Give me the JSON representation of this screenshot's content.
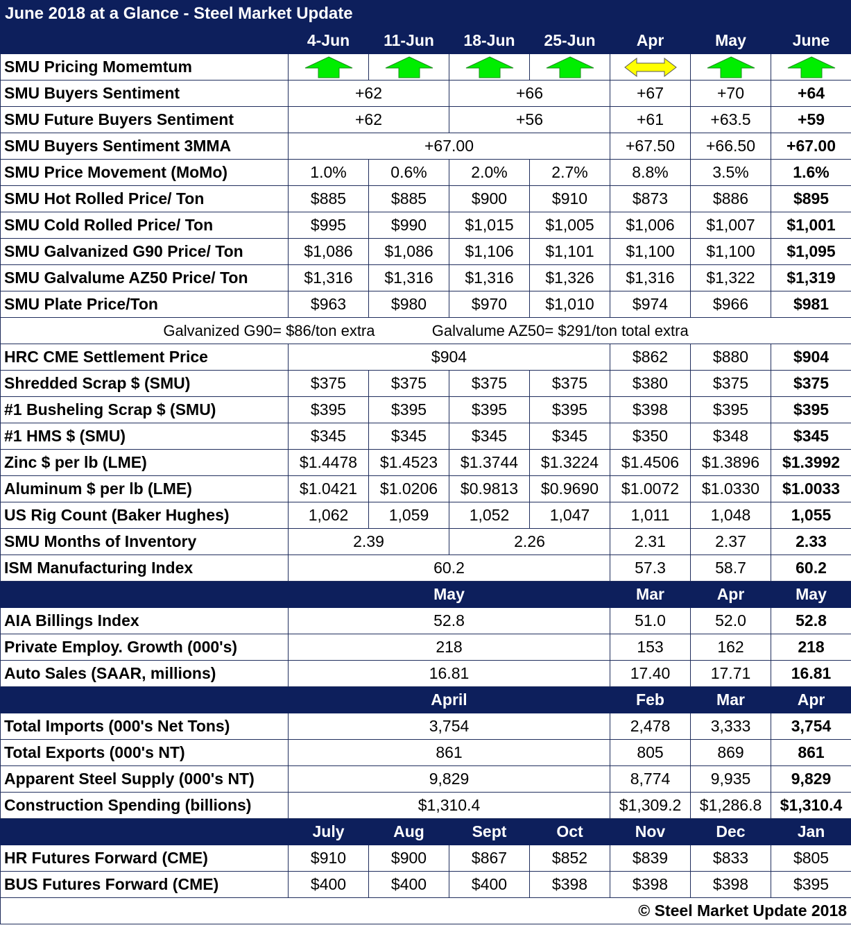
{
  "title": "June 2018 at a Glance - Steel Market Update",
  "header_weeks": [
    "4-Jun",
    "11-Jun",
    "18-Jun",
    "25-Jun",
    "Apr",
    "May",
    "June"
  ],
  "momentum": {
    "label": "SMU Pricing Momemtum",
    "arrows": [
      "up",
      "up",
      "up",
      "up",
      "sideways",
      "up",
      "up"
    ],
    "colors": {
      "up": "#00ee00",
      "sideways": "#ffff00"
    }
  },
  "buyers_sentiment": {
    "label": "SMU Buyers Sentiment",
    "a": "+62",
    "b": "+66",
    "apr": "+67",
    "may": "+70",
    "june": "+64"
  },
  "future_buyers": {
    "label": "SMU Future Buyers Sentiment",
    "a": "+62",
    "b": "+56",
    "apr": "+61",
    "may": "+63.5",
    "june": "+59"
  },
  "sentiment_3mma": {
    "label": "SMU Buyers Sentiment 3MMA",
    "a": "+67.00",
    "apr": "+67.50",
    "may": "+66.50",
    "june": "+67.00"
  },
  "weekly_rows": [
    {
      "label": "SMU Price Movement (MoMo)",
      "v": [
        "1.0%",
        "0.6%",
        "2.0%",
        "2.7%",
        "8.8%",
        "3.5%",
        "1.6%"
      ]
    },
    {
      "label": "SMU Hot Rolled Price/ Ton",
      "v": [
        "$885",
        "$885",
        "$900",
        "$910",
        "$873",
        "$886",
        "$895"
      ]
    },
    {
      "label": "SMU Cold Rolled Price/ Ton",
      "v": [
        "$995",
        "$990",
        "$1,015",
        "$1,005",
        "$1,006",
        "$1,007",
        "$1,001"
      ]
    },
    {
      "label": "SMU Galvanized G90 Price/ Ton",
      "v": [
        "$1,086",
        "$1,086",
        "$1,106",
        "$1,101",
        "$1,100",
        "$1,100",
        "$1,095"
      ]
    },
    {
      "label": "SMU Galvalume AZ50 Price/ Ton",
      "v": [
        "$1,316",
        "$1,316",
        "$1,316",
        "$1,326",
        "$1,316",
        "$1,322",
        "$1,319"
      ]
    },
    {
      "label": "SMU Plate Price/Ton",
      "v": [
        "$963",
        "$980",
        "$970",
        "$1,010",
        "$974",
        "$966",
        "$981"
      ]
    }
  ],
  "note": {
    "g90": "Galvanized G90= $86/ton extra",
    "az50": "Galvalume AZ50= $291/ton total extra"
  },
  "hrc_cme": {
    "label": "HRC CME Settlement Price",
    "a": "$904",
    "apr": "$862",
    "may": "$880",
    "june": "$904"
  },
  "scrap_rows": [
    {
      "label": "Shredded Scrap $ (SMU)",
      "v": [
        "$375",
        "$375",
        "$375",
        "$375",
        "$380",
        "$375",
        "$375"
      ]
    },
    {
      "label": "#1 Busheling Scrap $ (SMU)",
      "v": [
        "$395",
        "$395",
        "$395",
        "$395",
        "$398",
        "$395",
        "$395"
      ]
    },
    {
      "label": "#1 HMS $ (SMU)",
      "v": [
        "$345",
        "$345",
        "$345",
        "$345",
        "$350",
        "$348",
        "$345"
      ]
    },
    {
      "label": "Zinc $ per lb (LME)",
      "v": [
        "$1.4478",
        "$1.4523",
        "$1.3744",
        "$1.3224",
        "$1.4506",
        "$1.3896",
        "$1.3992"
      ]
    },
    {
      "label": "Aluminum $ per lb (LME)",
      "v": [
        "$1.0421",
        "$1.0206",
        "$0.9813",
        "$0.9690",
        "$1.0072",
        "$1.0330",
        "$1.0033"
      ]
    },
    {
      "label": "US Rig Count (Baker Hughes)",
      "v": [
        "1,062",
        "1,059",
        "1,052",
        "1,047",
        "1,011",
        "1,048",
        "1,055"
      ]
    }
  ],
  "inventory": {
    "label": "SMU Months of Inventory",
    "a": "2.39",
    "b": "2.26",
    "apr": "2.31",
    "may": "2.37",
    "june": "2.33"
  },
  "ism": {
    "label": "ISM Manufacturing Index",
    "a": "60.2",
    "apr": "57.3",
    "may": "58.7",
    "june": "60.2"
  },
  "section2": {
    "header": {
      "main": "May",
      "c1": "Mar",
      "c2": "Apr",
      "c3": "May"
    },
    "rows": [
      {
        "label": "AIA Billings Index",
        "main": "52.8",
        "c1": "51.0",
        "c2": "52.0",
        "c3": "52.8"
      },
      {
        "label": "Private Employ. Growth (000's)",
        "main": "218",
        "c1": "153",
        "c2": "162",
        "c3": "218"
      },
      {
        "label": "Auto Sales (SAAR, millions)",
        "main": "16.81",
        "c1": "17.40",
        "c2": "17.71",
        "c3": "16.81"
      }
    ]
  },
  "section3": {
    "header": {
      "main": "April",
      "c1": "Feb",
      "c2": "Mar",
      "c3": "Apr"
    },
    "rows": [
      {
        "label": "Total Imports (000's Net Tons)",
        "main": "3,754",
        "c1": "2,478",
        "c2": "3,333",
        "c3": "3,754"
      },
      {
        "label": "Total Exports (000's NT)",
        "main": "861",
        "c1": "805",
        "c2": "869",
        "c3": "861"
      },
      {
        "label": "Apparent Steel Supply (000's NT)",
        "main": "9,829",
        "c1": "8,774",
        "c2": "9,935",
        "c3": "9,829"
      },
      {
        "label": "Construction Spending (billions)",
        "main": "$1,310.4",
        "c1": "$1,309.2",
        "c2": "$1,286.8",
        "c3": "$1,310.4"
      }
    ]
  },
  "futures": {
    "header": [
      "July",
      "Aug",
      "Sept",
      "Oct",
      "Nov",
      "Dec",
      "Jan"
    ],
    "rows": [
      {
        "label": "HR Futures Forward (CME)",
        "v": [
          "$910",
          "$900",
          "$867",
          "$852",
          "$839",
          "$833",
          "$805"
        ]
      },
      {
        "label": "BUS Futures Forward (CME)",
        "v": [
          "$400",
          "$400",
          "$400",
          "$398",
          "$398",
          "$398",
          "$395"
        ]
      }
    ]
  },
  "footer": "© Steel Market Update 2018"
}
